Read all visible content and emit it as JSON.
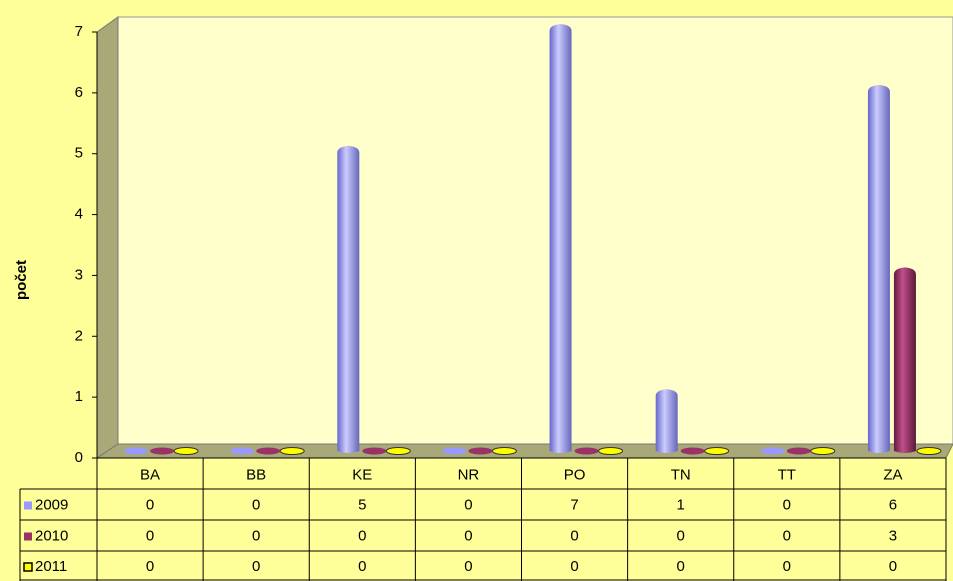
{
  "chart_data": {
    "type": "bar",
    "y_label": "počet",
    "categories": [
      "BA",
      "BB",
      "KE",
      "NR",
      "PO",
      "TN",
      "TT",
      "ZA"
    ],
    "series": [
      {
        "name": "2009",
        "color": "#9999ff",
        "values": [
          0,
          0,
          5,
          0,
          7,
          1,
          0,
          6
        ]
      },
      {
        "name": "2010",
        "color": "#993366",
        "values": [
          0,
          0,
          0,
          0,
          0,
          0,
          0,
          3
        ]
      },
      {
        "name": "2011",
        "color": "#ffff00",
        "values": [
          0,
          0,
          0,
          0,
          0,
          0,
          0,
          0
        ]
      }
    ],
    "ylim": [
      0,
      7
    ],
    "yticks": [
      0,
      1,
      2,
      3,
      4,
      5,
      6,
      7
    ]
  }
}
